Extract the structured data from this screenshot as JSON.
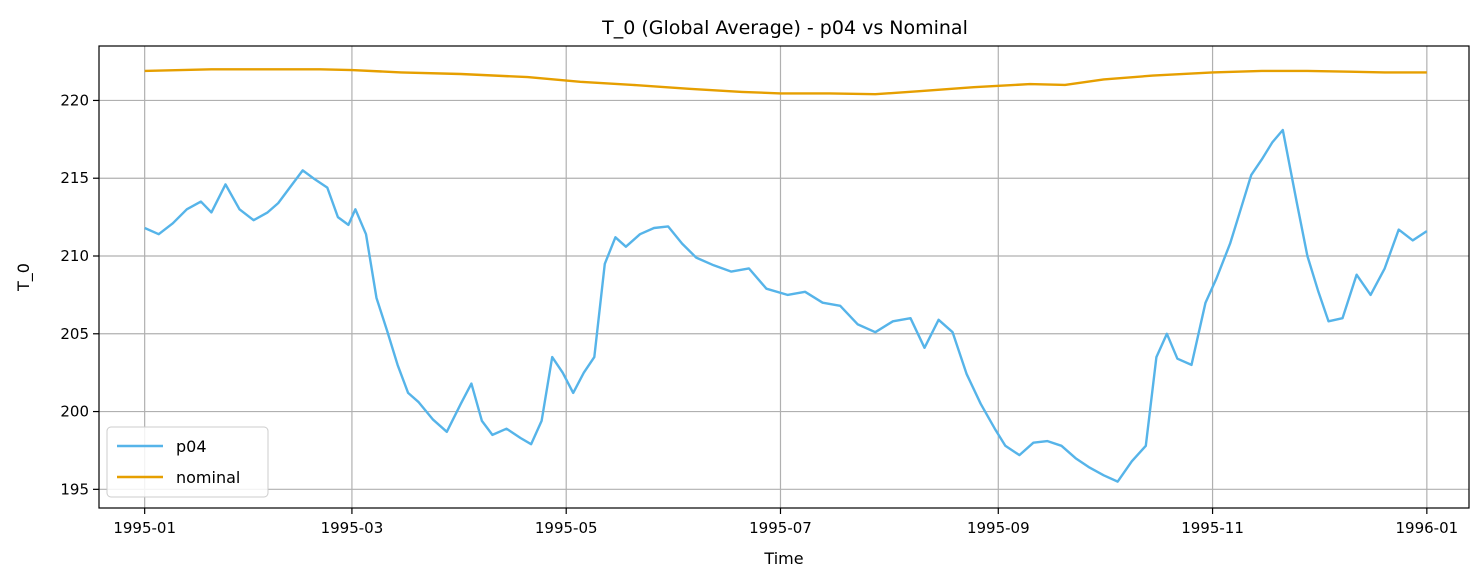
{
  "chart_data": {
    "type": "line",
    "title": "T_0 (Global Average) - p04 vs Nominal",
    "xlabel": "Time",
    "ylabel": "T_0",
    "xlim": [
      "1994-12-19",
      "1996-01-13"
    ],
    "ylim": [
      193.8,
      223.5
    ],
    "grid": true,
    "legend_position": "lower-left",
    "x_ticks": [
      "1995-01-01",
      "1995-03-01",
      "1995-05-01",
      "1995-07-01",
      "1995-09-01",
      "1995-11-01",
      "1996-01-01"
    ],
    "x_tick_labels": [
      "1995-01",
      "1995-03",
      "1995-05",
      "1995-07",
      "1995-09",
      "1995-11",
      "1996-01"
    ],
    "y_ticks": [
      195,
      200,
      205,
      210,
      215,
      220
    ],
    "y_tick_labels": [
      "195",
      "200",
      "205",
      "210",
      "215",
      "220"
    ],
    "series": [
      {
        "name": "p04",
        "color": "#56B4E9",
        "x": [
          "1995-01-01",
          "1995-01-05",
          "1995-01-09",
          "1995-01-13",
          "1995-01-17",
          "1995-01-20",
          "1995-01-24",
          "1995-01-28",
          "1995-02-01",
          "1995-02-05",
          "1995-02-08",
          "1995-02-12",
          "1995-02-15",
          "1995-02-18",
          "1995-02-22",
          "1995-02-25",
          "1995-02-28",
          "1995-03-02",
          "1995-03-05",
          "1995-03-08",
          "1995-03-11",
          "1995-03-14",
          "1995-03-17",
          "1995-03-20",
          "1995-03-24",
          "1995-03-28",
          "1995-04-01",
          "1995-04-04",
          "1995-04-07",
          "1995-04-10",
          "1995-04-14",
          "1995-04-18",
          "1995-04-21",
          "1995-04-24",
          "1995-04-27",
          "1995-04-30",
          "1995-05-03",
          "1995-05-06",
          "1995-05-09",
          "1995-05-12",
          "1995-05-15",
          "1995-05-18",
          "1995-05-22",
          "1995-05-26",
          "1995-05-30",
          "1995-06-03",
          "1995-06-07",
          "1995-06-12",
          "1995-06-17",
          "1995-06-22",
          "1995-06-27",
          "1995-07-03",
          "1995-07-08",
          "1995-07-13",
          "1995-07-18",
          "1995-07-23",
          "1995-07-28",
          "1995-08-02",
          "1995-08-07",
          "1995-08-11",
          "1995-08-15",
          "1995-08-19",
          "1995-08-23",
          "1995-08-27",
          "1995-08-31",
          "1995-09-03",
          "1995-09-07",
          "1995-09-11",
          "1995-09-15",
          "1995-09-19",
          "1995-09-23",
          "1995-09-27",
          "1995-10-01",
          "1995-10-05",
          "1995-10-09",
          "1995-10-13",
          "1995-10-16",
          "1995-10-19",
          "1995-10-22",
          "1995-10-26",
          "1995-10-30",
          "1995-11-02",
          "1995-11-06",
          "1995-11-09",
          "1995-11-12",
          "1995-11-15",
          "1995-11-18",
          "1995-11-21",
          "1995-11-25",
          "1995-11-28",
          "1995-12-01",
          "1995-12-04",
          "1995-12-08",
          "1995-12-12",
          "1995-12-16",
          "1995-12-20",
          "1995-12-24",
          "1995-12-28",
          "1996-01-01"
        ],
        "values": [
          211.8,
          211.4,
          212.1,
          213.0,
          213.5,
          212.8,
          214.6,
          213.0,
          212.3,
          212.8,
          213.4,
          214.6,
          215.5,
          215.0,
          214.4,
          212.5,
          212.0,
          213.0,
          211.4,
          207.3,
          205.2,
          203.0,
          201.2,
          200.6,
          199.5,
          198.7,
          200.5,
          201.8,
          199.4,
          198.5,
          198.9,
          198.3,
          197.9,
          199.4,
          203.5,
          202.5,
          201.2,
          202.5,
          203.5,
          209.5,
          211.2,
          210.6,
          211.4,
          211.8,
          211.9,
          210.8,
          209.9,
          209.4,
          209.0,
          209.2,
          207.9,
          207.5,
          207.7,
          207.0,
          206.8,
          205.6,
          205.1,
          205.8,
          206.0,
          204.1,
          205.9,
          205.1,
          202.4,
          200.5,
          198.9,
          197.8,
          197.2,
          198.0,
          198.1,
          197.8,
          197.0,
          196.4,
          195.9,
          195.5,
          196.8,
          197.8,
          203.5,
          205.0,
          203.4,
          203.0,
          207.0,
          208.5,
          210.8,
          213.0,
          215.2,
          216.2,
          217.3,
          218.1,
          213.4,
          210.0,
          207.8,
          205.8,
          206.0,
          208.8,
          207.5,
          209.2,
          211.7,
          211.0,
          211.6
        ]
      },
      {
        "name": "nominal",
        "color": "#E69F00",
        "x": [
          "1995-01-01",
          "1995-01-20",
          "1995-02-05",
          "1995-02-20",
          "1995-03-01",
          "1995-03-15",
          "1995-04-01",
          "1995-04-20",
          "1995-05-05",
          "1995-05-20",
          "1995-06-05",
          "1995-06-20",
          "1995-07-01",
          "1995-07-15",
          "1995-07-28",
          "1995-08-10",
          "1995-08-25",
          "1995-09-10",
          "1995-09-20",
          "1995-10-01",
          "1995-10-15",
          "1995-11-01",
          "1995-11-15",
          "1995-11-28",
          "1995-12-10",
          "1995-12-20",
          "1996-01-01"
        ],
        "values": [
          221.9,
          222.0,
          222.0,
          222.0,
          221.95,
          221.8,
          221.7,
          221.5,
          221.2,
          221.0,
          220.75,
          220.55,
          220.45,
          220.45,
          220.4,
          220.6,
          220.85,
          221.05,
          221.0,
          221.35,
          221.6,
          221.8,
          221.9,
          221.9,
          221.85,
          221.8,
          221.8
        ]
      }
    ]
  }
}
